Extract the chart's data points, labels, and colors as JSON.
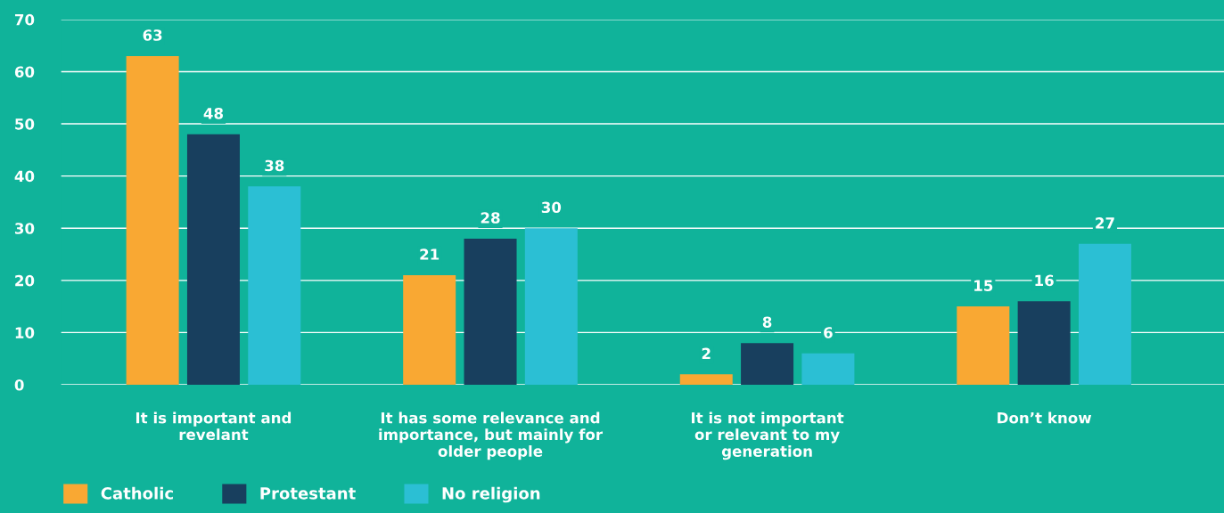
{
  "chart_data": {
    "type": "bar",
    "categories": [
      "It is important and\nrevelant",
      "It has some relevance and\nimportance, but mainly for\nolder people",
      "It is not important\nor relevant to my\ngeneration",
      "Don’t know"
    ],
    "series": [
      {
        "name": "Catholic",
        "color": "#f9a833",
        "values": [
          63,
          21,
          2,
          15
        ]
      },
      {
        "name": "Protestant",
        "color": "#183f5e",
        "values": [
          48,
          28,
          8,
          16
        ]
      },
      {
        "name": "No religion",
        "color": "#2bbfd4",
        "values": [
          38,
          30,
          6,
          27
        ]
      }
    ],
    "ylim": [
      0,
      70
    ],
    "yticks": [
      0,
      10,
      20,
      30,
      40,
      50,
      60,
      70
    ],
    "grid": "y",
    "legend": "bottom left",
    "data_labels": true
  }
}
